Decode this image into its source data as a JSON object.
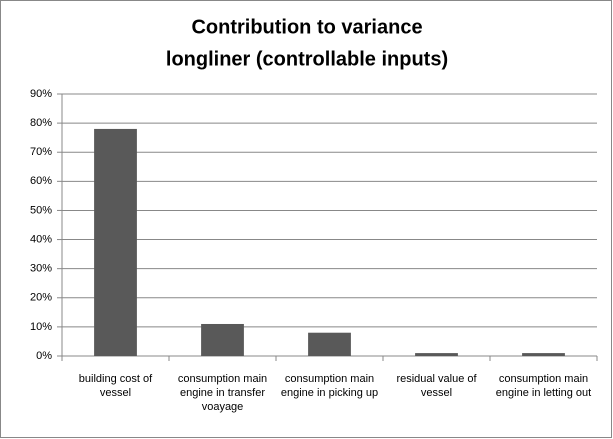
{
  "chart_data": {
    "type": "bar",
    "title": [
      "Contribution to variance",
      "longliner (controllable inputs)"
    ],
    "categories": [
      "building cost  of vessel",
      "consumption main engine in transfer voayage",
      "consumption main engine in picking up",
      "residual value of vessel",
      "consumption main engine in letting out"
    ],
    "values": [
      78,
      11,
      8,
      1,
      1
    ],
    "color": "#595959",
    "ylim": [
      0,
      90
    ],
    "yticks": [
      {
        "value": 0,
        "label": "0%"
      },
      {
        "value": 10,
        "label": "10%"
      },
      {
        "value": 20,
        "label": "20%"
      },
      {
        "value": 30,
        "label": "30%"
      },
      {
        "value": 40,
        "label": "40%"
      },
      {
        "value": 50,
        "label": "50%"
      },
      {
        "value": 60,
        "label": "60%"
      },
      {
        "value": 70,
        "label": "70%"
      },
      {
        "value": 80,
        "label": "80%"
      },
      {
        "value": 90,
        "label": "90%"
      }
    ],
    "grid": true
  }
}
